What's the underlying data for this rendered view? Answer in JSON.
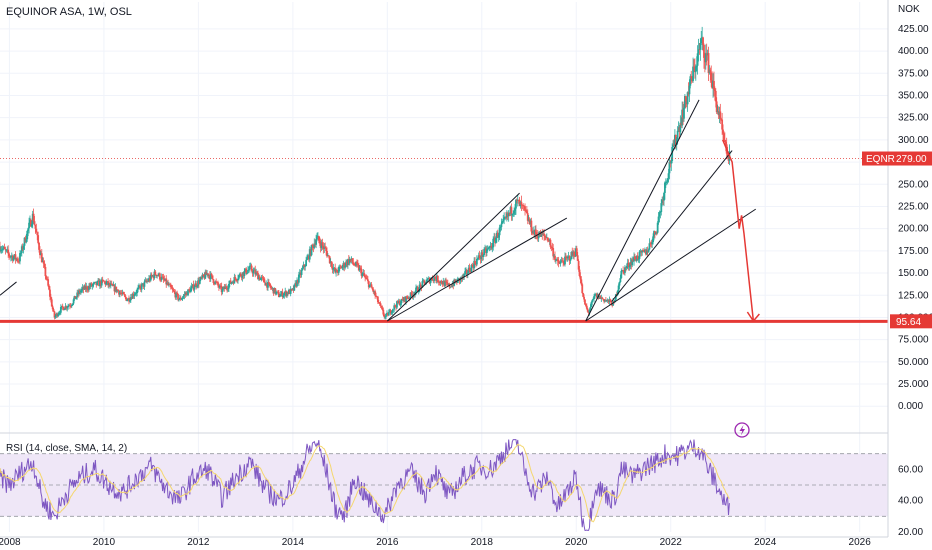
{
  "header": {
    "title": "EQUINOR ASA, 1W, OSL",
    "currency": "NOK",
    "rsi_label": "RSI (14, close, SMA, 14, 2)"
  },
  "colors": {
    "up": "#26a69a",
    "down": "#ef5350",
    "support": "#e53935",
    "rsi_line": "#7e57c2",
    "rsi_ma": "#f5d76e",
    "rsi_band": "#efe7f7"
  },
  "chart_data": [
    {
      "type": "candlestick",
      "title": "EQUINOR ASA, 1W, OSL",
      "yunit": "NOK",
      "x_range": [
        2007.8,
        2026.6
      ],
      "ylim": [
        -20,
        435
      ],
      "y_ticks": [
        0,
        25,
        50,
        75,
        100,
        125,
        150,
        175,
        200,
        225,
        250,
        275,
        300,
        325,
        350,
        375,
        400,
        425
      ],
      "y_tick_labels": [
        "0.000",
        "25.000",
        "50.000",
        "75.000",
        "100.000",
        "125.00",
        "150.00",
        "175.00",
        "200.00",
        "225.00",
        "250.00",
        "275.00",
        "300.00",
        "325.00",
        "350.00",
        "375.00",
        "400.00",
        "425.00"
      ],
      "x_ticks": [
        2008,
        2010,
        2012,
        2014,
        2016,
        2018,
        2020,
        2022,
        2024,
        2026
      ],
      "x_tick_labels": [
        "2008",
        "2010",
        "2012",
        "2014",
        "2016",
        "2018",
        "2020",
        "2022",
        "2024",
        "2026"
      ],
      "price_series": [
        [
          2007.8,
          180
        ],
        [
          2008.0,
          170
        ],
        [
          2008.2,
          165
        ],
        [
          2008.4,
          200
        ],
        [
          2008.5,
          215
        ],
        [
          2008.6,
          185
        ],
        [
          2008.8,
          140
        ],
        [
          2008.95,
          100
        ],
        [
          2009.1,
          110
        ],
        [
          2009.3,
          115
        ],
        [
          2009.5,
          130
        ],
        [
          2009.7,
          135
        ],
        [
          2010.0,
          140
        ],
        [
          2010.3,
          130
        ],
        [
          2010.5,
          120
        ],
        [
          2010.8,
          135
        ],
        [
          2011.1,
          150
        ],
        [
          2011.3,
          140
        ],
        [
          2011.6,
          120
        ],
        [
          2011.9,
          135
        ],
        [
          2012.2,
          150
        ],
        [
          2012.5,
          130
        ],
        [
          2012.8,
          145
        ],
        [
          2013.1,
          155
        ],
        [
          2013.4,
          140
        ],
        [
          2013.7,
          125
        ],
        [
          2014.0,
          130
        ],
        [
          2014.3,
          165
        ],
        [
          2014.5,
          190
        ],
        [
          2014.7,
          175
        ],
        [
          2014.9,
          150
        ],
        [
          2015.2,
          165
        ],
        [
          2015.4,
          155
        ],
        [
          2015.7,
          130
        ],
        [
          2015.95,
          100
        ],
        [
          2016.2,
          115
        ],
        [
          2016.5,
          125
        ],
        [
          2016.8,
          140
        ],
        [
          2017.0,
          145
        ],
        [
          2017.3,
          135
        ],
        [
          2017.6,
          145
        ],
        [
          2017.9,
          165
        ],
        [
          2018.2,
          180
        ],
        [
          2018.5,
          210
        ],
        [
          2018.75,
          230
        ],
        [
          2018.9,
          220
        ],
        [
          2019.1,
          195
        ],
        [
          2019.4,
          190
        ],
        [
          2019.6,
          160
        ],
        [
          2019.8,
          165
        ],
        [
          2020.0,
          175
        ],
        [
          2020.15,
          120
        ],
        [
          2020.25,
          105
        ],
        [
          2020.4,
          125
        ],
        [
          2020.6,
          120
        ],
        [
          2020.8,
          115
        ],
        [
          2020.95,
          150
        ],
        [
          2021.2,
          165
        ],
        [
          2021.5,
          175
        ],
        [
          2021.7,
          200
        ],
        [
          2021.9,
          255
        ],
        [
          2022.1,
          300
        ],
        [
          2022.3,
          340
        ],
        [
          2022.5,
          380
        ],
        [
          2022.65,
          410
        ],
        [
          2022.8,
          385
        ],
        [
          2022.95,
          345
        ],
        [
          2023.05,
          320
        ],
        [
          2023.15,
          290
        ],
        [
          2023.25,
          279
        ]
      ],
      "last_price": {
        "label": "EQNR",
        "value": 279.0,
        "value_label": "279.00"
      },
      "support": {
        "value": 95.64,
        "value_label": "95.64"
      },
      "trendlines": [
        {
          "from": [
            2007.8,
            125
          ],
          "to": [
            2008.15,
            140
          ]
        },
        {
          "from": [
            2016.0,
            96
          ],
          "to": [
            2018.8,
            240
          ]
        },
        {
          "from": [
            2016.0,
            96
          ],
          "to": [
            2019.8,
            212
          ]
        },
        {
          "from": [
            2020.2,
            96
          ],
          "to": [
            2022.6,
            345
          ]
        },
        {
          "from": [
            2020.75,
            118
          ],
          "to": [
            2023.3,
            288
          ]
        },
        {
          "from": [
            2020.2,
            96
          ],
          "to": [
            2023.8,
            222
          ]
        }
      ],
      "projection": [
        [
          2023.1,
          300
        ],
        [
          2023.3,
          275
        ],
        [
          2023.45,
          200
        ],
        [
          2023.5,
          215
        ],
        [
          2023.55,
          195
        ],
        [
          2023.75,
          96
        ]
      ]
    },
    {
      "type": "line",
      "title": "RSI (14, close, SMA, 14, 2)",
      "ylim": [
        20,
        80
      ],
      "y_ticks": [
        20,
        40,
        60
      ],
      "y_tick_labels": [
        "20.00",
        "40.00",
        "60.00"
      ],
      "bands": [
        30,
        50,
        70
      ],
      "rsi_series": [
        [
          2007.8,
          55
        ],
        [
          2008.0,
          50
        ],
        [
          2008.3,
          60
        ],
        [
          2008.5,
          65
        ],
        [
          2008.7,
          40
        ],
        [
          2008.95,
          30
        ],
        [
          2009.2,
          45
        ],
        [
          2009.5,
          55
        ],
        [
          2009.8,
          60
        ],
        [
          2010.1,
          50
        ],
        [
          2010.4,
          45
        ],
        [
          2010.7,
          55
        ],
        [
          2011.0,
          62
        ],
        [
          2011.3,
          48
        ],
        [
          2011.6,
          40
        ],
        [
          2011.9,
          55
        ],
        [
          2012.2,
          60
        ],
        [
          2012.5,
          42
        ],
        [
          2012.8,
          55
        ],
        [
          2013.1,
          65
        ],
        [
          2013.4,
          48
        ],
        [
          2013.7,
          40
        ],
        [
          2014.0,
          50
        ],
        [
          2014.3,
          70
        ],
        [
          2014.5,
          78
        ],
        [
          2014.7,
          60
        ],
        [
          2014.9,
          35
        ],
        [
          2015.1,
          30
        ],
        [
          2015.3,
          55
        ],
        [
          2015.6,
          40
        ],
        [
          2015.95,
          30
        ],
        [
          2016.2,
          50
        ],
        [
          2016.5,
          58
        ],
        [
          2016.8,
          45
        ],
        [
          2017.0,
          60
        ],
        [
          2017.3,
          42
        ],
        [
          2017.6,
          55
        ],
        [
          2017.9,
          62
        ],
        [
          2018.2,
          60
        ],
        [
          2018.5,
          72
        ],
        [
          2018.75,
          78
        ],
        [
          2018.9,
          60
        ],
        [
          2019.1,
          45
        ],
        [
          2019.4,
          55
        ],
        [
          2019.6,
          35
        ],
        [
          2019.8,
          45
        ],
        [
          2020.0,
          55
        ],
        [
          2020.15,
          25
        ],
        [
          2020.25,
          20
        ],
        [
          2020.4,
          50
        ],
        [
          2020.6,
          45
        ],
        [
          2020.8,
          40
        ],
        [
          2020.95,
          60
        ],
        [
          2021.2,
          55
        ],
        [
          2021.5,
          62
        ],
        [
          2021.7,
          65
        ],
        [
          2021.9,
          70
        ],
        [
          2022.1,
          68
        ],
        [
          2022.3,
          72
        ],
        [
          2022.5,
          75
        ],
        [
          2022.65,
          72
        ],
        [
          2022.8,
          60
        ],
        [
          2022.95,
          52
        ],
        [
          2023.05,
          45
        ],
        [
          2023.15,
          38
        ],
        [
          2023.25,
          35
        ]
      ]
    }
  ]
}
